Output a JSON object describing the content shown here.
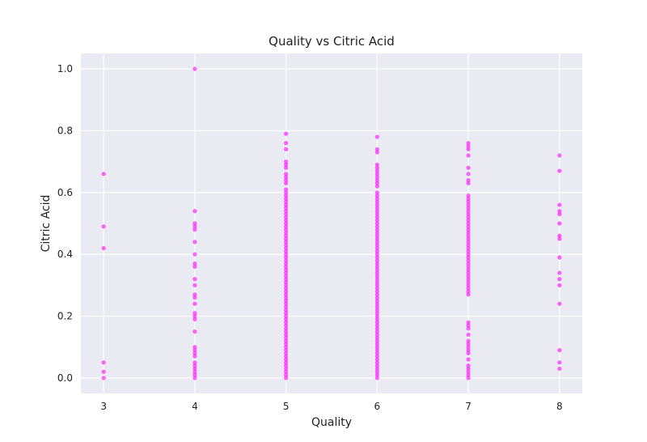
{
  "chart_data": {
    "type": "scatter",
    "title": "Quality vs Citric Acid",
    "xlabel": "Quality",
    "ylabel": "Citric Acid",
    "xlim": [
      2.75,
      8.25
    ],
    "ylim": [
      -0.05,
      1.05
    ],
    "x_ticks": [
      3,
      4,
      5,
      6,
      7,
      8
    ],
    "y_ticks": [
      0.0,
      0.2,
      0.4,
      0.6,
      0.8,
      1.0
    ],
    "y_tick_labels": [
      "0.0",
      "0.2",
      "0.4",
      "0.6",
      "0.8",
      "1.0"
    ],
    "grid": true,
    "point_color": "#ff00ff",
    "background_color": "#eaeaf2",
    "series": [
      {
        "points": [
          [
            3,
            0.66
          ],
          [
            3,
            0.49
          ],
          [
            3,
            0.42
          ],
          [
            3,
            0.05
          ],
          [
            3,
            0.02
          ],
          [
            3,
            0.0
          ],
          [
            4,
            1.0
          ],
          [
            4,
            0.54
          ],
          [
            4,
            0.5
          ],
          [
            4,
            0.49
          ],
          [
            4,
            0.48
          ],
          [
            4,
            0.44
          ],
          [
            4,
            0.4
          ],
          [
            4,
            0.37
          ],
          [
            4,
            0.36
          ],
          [
            4,
            0.32
          ],
          [
            4,
            0.3
          ],
          [
            4,
            0.27
          ],
          [
            4,
            0.26
          ],
          [
            4,
            0.24
          ],
          [
            4,
            0.21
          ],
          [
            4,
            0.2
          ],
          [
            4,
            0.19
          ],
          [
            4,
            0.15
          ],
          [
            4,
            0.1
          ],
          [
            4,
            0.09
          ],
          [
            4,
            0.08
          ],
          [
            4,
            0.07
          ],
          [
            4,
            0.05
          ],
          [
            4,
            0.04
          ],
          [
            4,
            0.03
          ],
          [
            4,
            0.02
          ],
          [
            4,
            0.01
          ],
          [
            4,
            0.0
          ],
          [
            5,
            0.79
          ],
          [
            5,
            0.76
          ],
          [
            5,
            0.74
          ],
          [
            5,
            0.7
          ],
          [
            5,
            0.69
          ],
          [
            5,
            0.68
          ],
          [
            5,
            0.66
          ],
          [
            5,
            0.65
          ],
          [
            5,
            0.64
          ],
          [
            5,
            0.63
          ],
          [
            5,
            0.61
          ],
          [
            5,
            0.6
          ],
          [
            5,
            0.59
          ],
          [
            5,
            0.58
          ],
          [
            5,
            0.57
          ],
          [
            5,
            0.56
          ],
          [
            5,
            0.55
          ],
          [
            5,
            0.54
          ],
          [
            5,
            0.53
          ],
          [
            5,
            0.52
          ],
          [
            5,
            0.51
          ],
          [
            5,
            0.5
          ],
          [
            5,
            0.49
          ],
          [
            5,
            0.48
          ],
          [
            5,
            0.47
          ],
          [
            5,
            0.46
          ],
          [
            5,
            0.45
          ],
          [
            5,
            0.44
          ],
          [
            5,
            0.43
          ],
          [
            5,
            0.42
          ],
          [
            5,
            0.41
          ],
          [
            5,
            0.4
          ],
          [
            5,
            0.39
          ],
          [
            5,
            0.38
          ],
          [
            5,
            0.37
          ],
          [
            5,
            0.36
          ],
          [
            5,
            0.35
          ],
          [
            5,
            0.34
          ],
          [
            5,
            0.33
          ],
          [
            5,
            0.32
          ],
          [
            5,
            0.31
          ],
          [
            5,
            0.3
          ],
          [
            5,
            0.29
          ],
          [
            5,
            0.28
          ],
          [
            5,
            0.27
          ],
          [
            5,
            0.26
          ],
          [
            5,
            0.25
          ],
          [
            5,
            0.24
          ],
          [
            5,
            0.23
          ],
          [
            5,
            0.22
          ],
          [
            5,
            0.21
          ],
          [
            5,
            0.2
          ],
          [
            5,
            0.19
          ],
          [
            5,
            0.18
          ],
          [
            5,
            0.17
          ],
          [
            5,
            0.16
          ],
          [
            5,
            0.15
          ],
          [
            5,
            0.14
          ],
          [
            5,
            0.13
          ],
          [
            5,
            0.12
          ],
          [
            5,
            0.11
          ],
          [
            5,
            0.1
          ],
          [
            5,
            0.09
          ],
          [
            5,
            0.08
          ],
          [
            5,
            0.07
          ],
          [
            5,
            0.06
          ],
          [
            5,
            0.05
          ],
          [
            5,
            0.04
          ],
          [
            5,
            0.03
          ],
          [
            5,
            0.02
          ],
          [
            5,
            0.01
          ],
          [
            5,
            0.0
          ],
          [
            6,
            0.78
          ],
          [
            6,
            0.74
          ],
          [
            6,
            0.73
          ],
          [
            6,
            0.69
          ],
          [
            6,
            0.68
          ],
          [
            6,
            0.67
          ],
          [
            6,
            0.66
          ],
          [
            6,
            0.65
          ],
          [
            6,
            0.64
          ],
          [
            6,
            0.63
          ],
          [
            6,
            0.62
          ],
          [
            6,
            0.6
          ],
          [
            6,
            0.59
          ],
          [
            6,
            0.58
          ],
          [
            6,
            0.57
          ],
          [
            6,
            0.56
          ],
          [
            6,
            0.55
          ],
          [
            6,
            0.54
          ],
          [
            6,
            0.53
          ],
          [
            6,
            0.52
          ],
          [
            6,
            0.51
          ],
          [
            6,
            0.5
          ],
          [
            6,
            0.49
          ],
          [
            6,
            0.48
          ],
          [
            6,
            0.47
          ],
          [
            6,
            0.46
          ],
          [
            6,
            0.45
          ],
          [
            6,
            0.44
          ],
          [
            6,
            0.43
          ],
          [
            6,
            0.42
          ],
          [
            6,
            0.41
          ],
          [
            6,
            0.4
          ],
          [
            6,
            0.39
          ],
          [
            6,
            0.38
          ],
          [
            6,
            0.37
          ],
          [
            6,
            0.36
          ],
          [
            6,
            0.35
          ],
          [
            6,
            0.34
          ],
          [
            6,
            0.33
          ],
          [
            6,
            0.32
          ],
          [
            6,
            0.31
          ],
          [
            6,
            0.3
          ],
          [
            6,
            0.29
          ],
          [
            6,
            0.28
          ],
          [
            6,
            0.27
          ],
          [
            6,
            0.26
          ],
          [
            6,
            0.25
          ],
          [
            6,
            0.24
          ],
          [
            6,
            0.23
          ],
          [
            6,
            0.22
          ],
          [
            6,
            0.21
          ],
          [
            6,
            0.2
          ],
          [
            6,
            0.19
          ],
          [
            6,
            0.18
          ],
          [
            6,
            0.17
          ],
          [
            6,
            0.16
          ],
          [
            6,
            0.15
          ],
          [
            6,
            0.14
          ],
          [
            6,
            0.13
          ],
          [
            6,
            0.12
          ],
          [
            6,
            0.11
          ],
          [
            6,
            0.1
          ],
          [
            6,
            0.09
          ],
          [
            6,
            0.08
          ],
          [
            6,
            0.07
          ],
          [
            6,
            0.06
          ],
          [
            6,
            0.05
          ],
          [
            6,
            0.04
          ],
          [
            6,
            0.03
          ],
          [
            6,
            0.02
          ],
          [
            6,
            0.01
          ],
          [
            6,
            0.0
          ],
          [
            7,
            0.76
          ],
          [
            7,
            0.75
          ],
          [
            7,
            0.74
          ],
          [
            7,
            0.72
          ],
          [
            7,
            0.68
          ],
          [
            7,
            0.66
          ],
          [
            7,
            0.64
          ],
          [
            7,
            0.63
          ],
          [
            7,
            0.59
          ],
          [
            7,
            0.58
          ],
          [
            7,
            0.57
          ],
          [
            7,
            0.56
          ],
          [
            7,
            0.55
          ],
          [
            7,
            0.54
          ],
          [
            7,
            0.53
          ],
          [
            7,
            0.52
          ],
          [
            7,
            0.51
          ],
          [
            7,
            0.5
          ],
          [
            7,
            0.49
          ],
          [
            7,
            0.48
          ],
          [
            7,
            0.47
          ],
          [
            7,
            0.46
          ],
          [
            7,
            0.45
          ],
          [
            7,
            0.44
          ],
          [
            7,
            0.43
          ],
          [
            7,
            0.42
          ],
          [
            7,
            0.41
          ],
          [
            7,
            0.4
          ],
          [
            7,
            0.39
          ],
          [
            7,
            0.38
          ],
          [
            7,
            0.37
          ],
          [
            7,
            0.36
          ],
          [
            7,
            0.35
          ],
          [
            7,
            0.34
          ],
          [
            7,
            0.33
          ],
          [
            7,
            0.32
          ],
          [
            7,
            0.31
          ],
          [
            7,
            0.3
          ],
          [
            7,
            0.29
          ],
          [
            7,
            0.28
          ],
          [
            7,
            0.27
          ],
          [
            7,
            0.18
          ],
          [
            7,
            0.17
          ],
          [
            7,
            0.16
          ],
          [
            7,
            0.14
          ],
          [
            7,
            0.12
          ],
          [
            7,
            0.11
          ],
          [
            7,
            0.1
          ],
          [
            7,
            0.09
          ],
          [
            7,
            0.08
          ],
          [
            7,
            0.06
          ],
          [
            7,
            0.04
          ],
          [
            7,
            0.03
          ],
          [
            7,
            0.02
          ],
          [
            7,
            0.01
          ],
          [
            7,
            0.0
          ],
          [
            8,
            0.72
          ],
          [
            8,
            0.67
          ],
          [
            8,
            0.56
          ],
          [
            8,
            0.54
          ],
          [
            8,
            0.53
          ],
          [
            8,
            0.5
          ],
          [
            8,
            0.46
          ],
          [
            8,
            0.45
          ],
          [
            8,
            0.39
          ],
          [
            8,
            0.34
          ],
          [
            8,
            0.32
          ],
          [
            8,
            0.3
          ],
          [
            8,
            0.24
          ],
          [
            8,
            0.09
          ],
          [
            8,
            0.05
          ],
          [
            8,
            0.03
          ]
        ]
      }
    ]
  }
}
